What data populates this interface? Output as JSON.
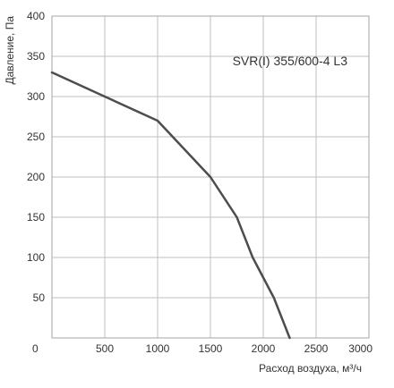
{
  "chart_data": {
    "type": "line",
    "title": "",
    "annotation": "SVR(I) 355/600-4 L3",
    "xlabel": "Расход воздуха, м³/ч",
    "ylabel": "Давление, Па",
    "xlim": [
      0,
      3000
    ],
    "ylim": [
      0,
      400
    ],
    "x_ticks": [
      0,
      500,
      1000,
      1500,
      2000,
      2500,
      3000
    ],
    "y_ticks": [
      50,
      100,
      150,
      200,
      250,
      300,
      350,
      400
    ],
    "x_tick_labels": [
      "0",
      "500",
      "1000",
      "1500",
      "2000",
      "2500",
      "3000"
    ],
    "y_tick_labels": [
      "50",
      "100",
      "150",
      "200",
      "250",
      "300",
      "350",
      "400"
    ],
    "grid": true,
    "legend": "none",
    "series": [
      {
        "color": "#4d4d4d",
        "x": [
          0,
          500,
          1000,
          1500,
          1750,
          1900,
          2100,
          2250
        ],
        "y": [
          330,
          300,
          270,
          200,
          150,
          100,
          50,
          0
        ]
      }
    ]
  }
}
